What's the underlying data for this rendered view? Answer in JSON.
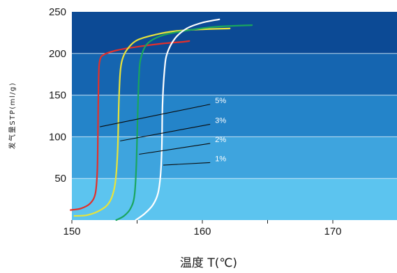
{
  "chart_data": {
    "type": "line",
    "title": "",
    "xlabel": "温度 T(℃)",
    "ylabel": "发气量STP(ml/g)",
    "xlim": [
      150,
      165
    ],
    "ylim": [
      0,
      250
    ],
    "x_ticks": [
      150,
      155,
      160,
      165,
      170
    ],
    "x_tick_labels": [
      "150",
      "",
      "160",
      "",
      "170"
    ],
    "y_ticks": [
      50,
      100,
      150,
      200,
      250
    ],
    "y_tick_labels": [
      "50",
      "100",
      "150",
      "200",
      "250"
    ],
    "grid": true,
    "background_bands": [
      {
        "from": 0,
        "to": 50,
        "color": "#5cc4ef"
      },
      {
        "from": 50,
        "to": 100,
        "color": "#3ea4de"
      },
      {
        "from": 100,
        "to": 150,
        "color": "#2484c9"
      },
      {
        "from": 150,
        "to": 200,
        "color": "#1565b0"
      },
      {
        "from": 200,
        "to": 250,
        "color": "#0c4a95"
      }
    ],
    "series": [
      {
        "name": "5%",
        "color": "#e2302b",
        "points": [
          [
            149.9,
            12
          ],
          [
            150.7,
            14
          ],
          [
            151.4,
            20
          ],
          [
            151.8,
            32
          ],
          [
            151.95,
            60
          ],
          [
            152.0,
            110
          ],
          [
            152.05,
            170
          ],
          [
            152.15,
            192
          ],
          [
            152.5,
            199
          ],
          [
            153.5,
            204
          ],
          [
            155,
            208
          ],
          [
            157,
            212
          ],
          [
            158.5,
            214
          ],
          [
            159.0,
            215
          ]
        ]
      },
      {
        "name": "3%",
        "color": "#e8e33a",
        "points": [
          [
            150.2,
            5
          ],
          [
            151.2,
            6
          ],
          [
            152.2,
            12
          ],
          [
            152.9,
            22
          ],
          [
            153.3,
            42
          ],
          [
            153.5,
            80
          ],
          [
            153.6,
            140
          ],
          [
            153.7,
            176
          ],
          [
            153.85,
            192
          ],
          [
            154.2,
            204
          ],
          [
            155,
            216
          ],
          [
            156.5,
            223
          ],
          [
            158,
            227
          ],
          [
            160,
            229
          ],
          [
            162.1,
            230
          ]
        ]
      },
      {
        "name": "2%",
        "color": "#1aa55e",
        "points": [
          [
            153.4,
            0
          ],
          [
            154.0,
            5
          ],
          [
            154.5,
            14
          ],
          [
            154.8,
            30
          ],
          [
            154.95,
            70
          ],
          [
            155.05,
            130
          ],
          [
            155.15,
            175
          ],
          [
            155.3,
            195
          ],
          [
            155.8,
            212
          ],
          [
            157,
            222
          ],
          [
            159,
            228
          ],
          [
            161,
            232
          ],
          [
            163.8,
            234
          ]
        ]
      },
      {
        "name": "1%",
        "color": "#ffffff",
        "points": [
          [
            154.9,
            0
          ],
          [
            155.6,
            8
          ],
          [
            156.2,
            18
          ],
          [
            156.6,
            32
          ],
          [
            156.8,
            55
          ],
          [
            156.9,
            90
          ],
          [
            156.95,
            140
          ],
          [
            157.1,
            180
          ],
          [
            157.3,
            200
          ],
          [
            157.9,
            218
          ],
          [
            158.8,
            230
          ],
          [
            160.0,
            237
          ],
          [
            161.3,
            241
          ]
        ]
      }
    ],
    "annotations": [
      {
        "label": "5%",
        "target": [
          152.15,
          112
        ],
        "label_at": [
          160.6,
          139
        ]
      },
      {
        "label": "3%",
        "target": [
          153.7,
          95
        ],
        "label_at": [
          160.6,
          115
        ]
      },
      {
        "label": "2%",
        "target": [
          155.15,
          79
        ],
        "label_at": [
          160.6,
          92
        ]
      },
      {
        "label": "1%",
        "target": [
          157.0,
          66
        ],
        "label_at": [
          160.6,
          69
        ]
      }
    ]
  }
}
